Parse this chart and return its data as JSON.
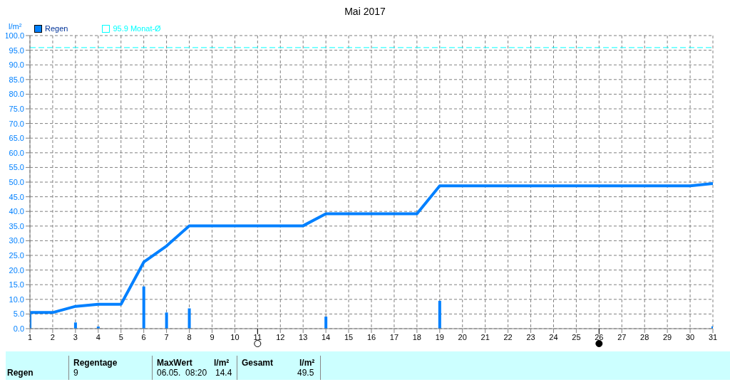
{
  "chart_data": {
    "type": "bar",
    "title": "Mai 2017",
    "ylabel": "l/m²",
    "x": [
      1,
      2,
      3,
      4,
      5,
      6,
      7,
      8,
      9,
      10,
      11,
      12,
      13,
      14,
      15,
      16,
      17,
      18,
      19,
      20,
      21,
      22,
      23,
      24,
      25,
      26,
      27,
      28,
      29,
      30,
      31
    ],
    "series": [
      {
        "name": "Regen",
        "color": "#0080ff",
        "values": [
          5.5,
          null,
          2.1,
          0.7,
          null,
          14.4,
          5.5,
          6.9,
          null,
          null,
          null,
          null,
          null,
          4.1,
          null,
          null,
          null,
          null,
          9.5,
          null,
          null,
          null,
          null,
          null,
          null,
          null,
          null,
          null,
          null,
          null,
          0.8
        ]
      },
      {
        "type": "line",
        "color": "#0080ff",
        "values": [
          5.5,
          5.5,
          7.6,
          8.3,
          8.3,
          22.7,
          28.2,
          35.1,
          35.1,
          35.1,
          35.1,
          35.1,
          35.1,
          39.2,
          39.2,
          39.2,
          39.2,
          39.2,
          48.7,
          48.7,
          48.7,
          48.7,
          48.7,
          48.7,
          48.7,
          48.7,
          48.7,
          48.7,
          48.7,
          48.7,
          49.5
        ]
      }
    ],
    "xlim": [
      1,
      31
    ],
    "xticks": [
      1,
      2,
      3,
      4,
      5,
      6,
      7,
      8,
      9,
      10,
      11,
      12,
      13,
      14,
      15,
      16,
      17,
      18,
      19,
      20,
      21,
      22,
      23,
      24,
      25,
      26,
      27,
      28,
      29,
      30,
      31
    ],
    "ylim": [
      0,
      100
    ],
    "yticks": [
      {
        "value": 0,
        "label": "0.0"
      },
      {
        "value": 5,
        "label": "5.0"
      },
      {
        "value": 10,
        "label": "10.0"
      },
      {
        "value": 15,
        "label": "15.0"
      },
      {
        "value": 20,
        "label": "20.0"
      },
      {
        "value": 25,
        "label": "25.0"
      },
      {
        "value": 30,
        "label": "30.0"
      },
      {
        "value": 35,
        "label": "35.0"
      },
      {
        "value": 40,
        "label": "40.0"
      },
      {
        "value": 45,
        "label": "45.0"
      },
      {
        "value": 50,
        "label": "50.0"
      },
      {
        "value": 55,
        "label": "55.0"
      },
      {
        "value": 60,
        "label": "60.0"
      },
      {
        "value": 65,
        "label": "65.0"
      },
      {
        "value": 70,
        "label": "70.0"
      },
      {
        "value": 75,
        "label": "75.0"
      },
      {
        "value": 80,
        "label": "80.0"
      },
      {
        "value": 85,
        "label": "85.0"
      },
      {
        "value": 90,
        "label": "90.0"
      },
      {
        "value": 95,
        "label": "95.0"
      },
      {
        "value": 100,
        "label": "100.0"
      }
    ],
    "ref_lines": [
      {
        "axis": "y",
        "value": 95.9,
        "label": "95.9 Monat-Ø",
        "color": "#00ffff",
        "line_style": "dashed"
      }
    ],
    "grid": true,
    "legend": "top left",
    "annotations": [
      "Regen",
      "Regentage",
      "9",
      "MaxWert",
      "l/m²",
      "06.05.  08:20",
      "14.4",
      "Gesamt",
      "l/m²",
      "49.5"
    ]
  }
}
